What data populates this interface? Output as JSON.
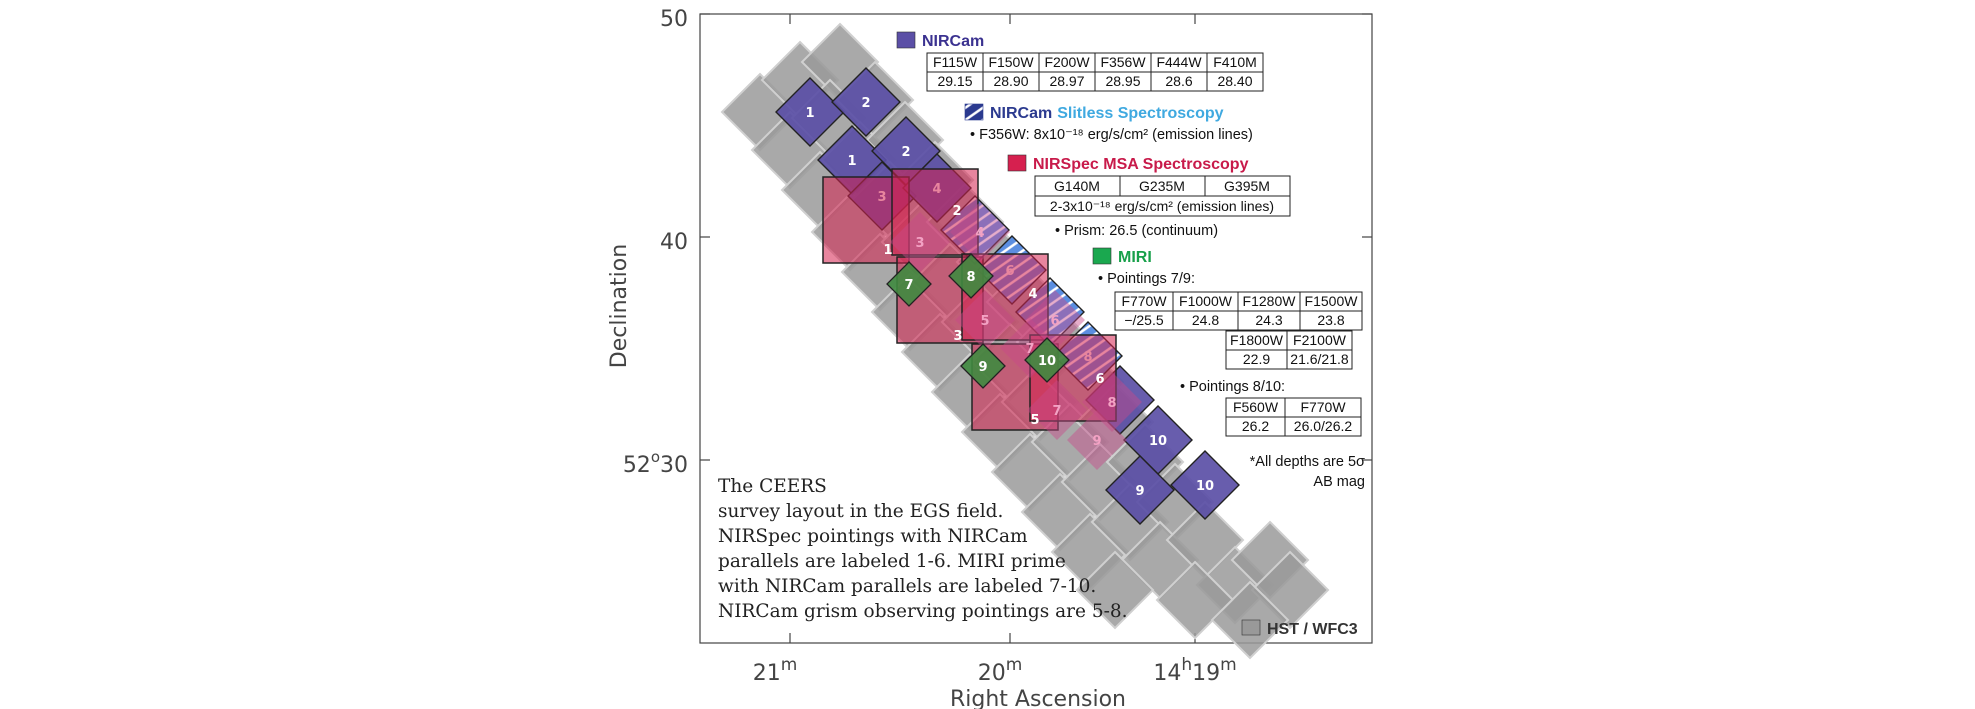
{
  "axes": {
    "ylabel": "Declination",
    "xlabel": "Right Ascension",
    "y_ticks": [
      {
        "main": "50",
        "sup": ""
      },
      {
        "main": "40",
        "sup": ""
      },
      {
        "main": "52",
        "sup": "o",
        "tail": "30"
      }
    ],
    "x_ticks": [
      {
        "main": "21",
        "sup": "m"
      },
      {
        "main": "20",
        "sup": "m"
      },
      {
        "main": "14",
        "sup": "h",
        "main2": "19",
        "sup2": "m"
      }
    ]
  },
  "legend": {
    "nircam": {
      "label": "NIRCam",
      "color": "#5b4fa6",
      "filters": [
        "F115W",
        "F150W",
        "F200W",
        "F356W",
        "F444W",
        "F410M"
      ],
      "depths": [
        "29.15",
        "28.90",
        "28.97",
        "28.95",
        "28.6",
        "28.40"
      ]
    },
    "slitless": {
      "label1": "NIRCam",
      "label2": "Slitless Spectroscopy",
      "color1": "#2b3a8f",
      "color2": "#3fa9e0",
      "note": "• F356W: 8x10⁻¹⁸ erg/s/cm² (emission lines)"
    },
    "nirspec": {
      "label": "NIRSpec MSA Spectroscopy",
      "color": "#d6204f",
      "gratings": [
        "G140M",
        "G235M",
        "G395M"
      ],
      "depth": "2-3x10⁻¹⁸ erg/s/cm² (emission lines)",
      "prism": "• Prism: 26.5 (continuum)"
    },
    "miri": {
      "label": "MIRI",
      "color": "#1aa84f",
      "p79": "• Pointings 7/9:",
      "t1_filters": [
        "F770W",
        "F1000W",
        "F1280W",
        "F1500W"
      ],
      "t1_depths": [
        "−/25.5",
        "24.8",
        "24.3",
        "23.8"
      ],
      "t2_filters": [
        "F1800W",
        "F2100W"
      ],
      "t2_depths": [
        "22.9",
        "21.6/21.8"
      ],
      "p810": "• Pointings 8/10:",
      "t3_filters": [
        "F560W",
        "F770W"
      ],
      "t3_depths": [
        "26.2",
        "26.0/26.2"
      ]
    },
    "footnote1": "*All depths are 5σ",
    "footnote2": "AB mag",
    "hst": {
      "label": "HST / WFC3",
      "color": "#999999"
    }
  },
  "caption": [
    "The CEERS",
    "survey layout in the EGS field.",
    "NIRSpec pointings with NIRCam",
    "parallels are labeled 1-6.  MIRI prime",
    "with NIRCam parallels are labeled 7-10.",
    "NIRCam grism observing pointings are 5-8."
  ],
  "labels": {
    "nircam_a": [
      "1",
      "2",
      "3",
      "4",
      "6",
      "8",
      "10"
    ],
    "nircam_b": [
      "1",
      "2",
      "3",
      "4",
      "5",
      "6",
      "7",
      "8",
      "9",
      "10"
    ],
    "nirspec": [
      "1",
      "2",
      "3",
      "4",
      "5",
      "6"
    ],
    "nirspec_inner": [
      "3",
      "4",
      "5",
      "5",
      "6",
      "7",
      "7",
      "8",
      "9"
    ],
    "miri": [
      "7",
      "8",
      "9",
      "10"
    ]
  }
}
